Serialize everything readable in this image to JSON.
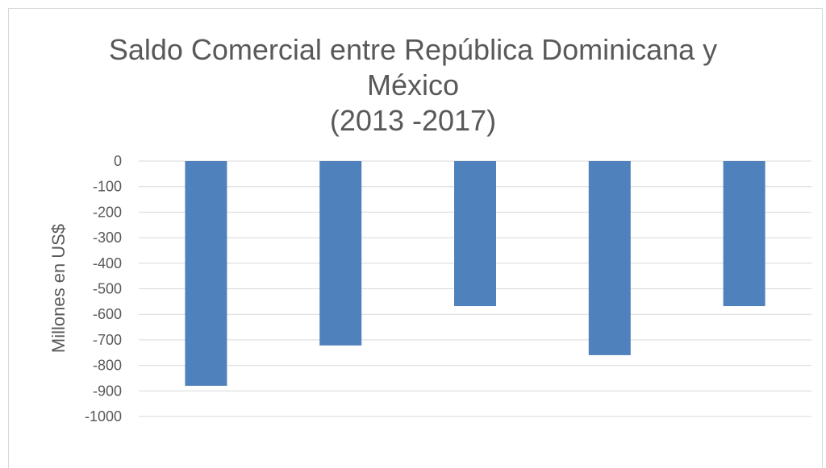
{
  "chart_data": {
    "type": "bar",
    "title_lines": [
      "Saldo Comercial entre República Dominicana y",
      "México",
      "(2013 -2017)"
    ],
    "ylabel": "Millones en US$",
    "ylim": [
      -1000,
      0
    ],
    "yticks": [
      0,
      -100,
      -200,
      -300,
      -400,
      -500,
      -600,
      -700,
      -800,
      -900,
      -1000
    ],
    "categories": [
      "",
      "",
      "",
      "",
      ""
    ],
    "values": [
      -880,
      -722,
      -568,
      -760,
      -568
    ],
    "bar_color": "#4f81bd",
    "gridline_color": "#d9d9d9",
    "grid": true
  }
}
